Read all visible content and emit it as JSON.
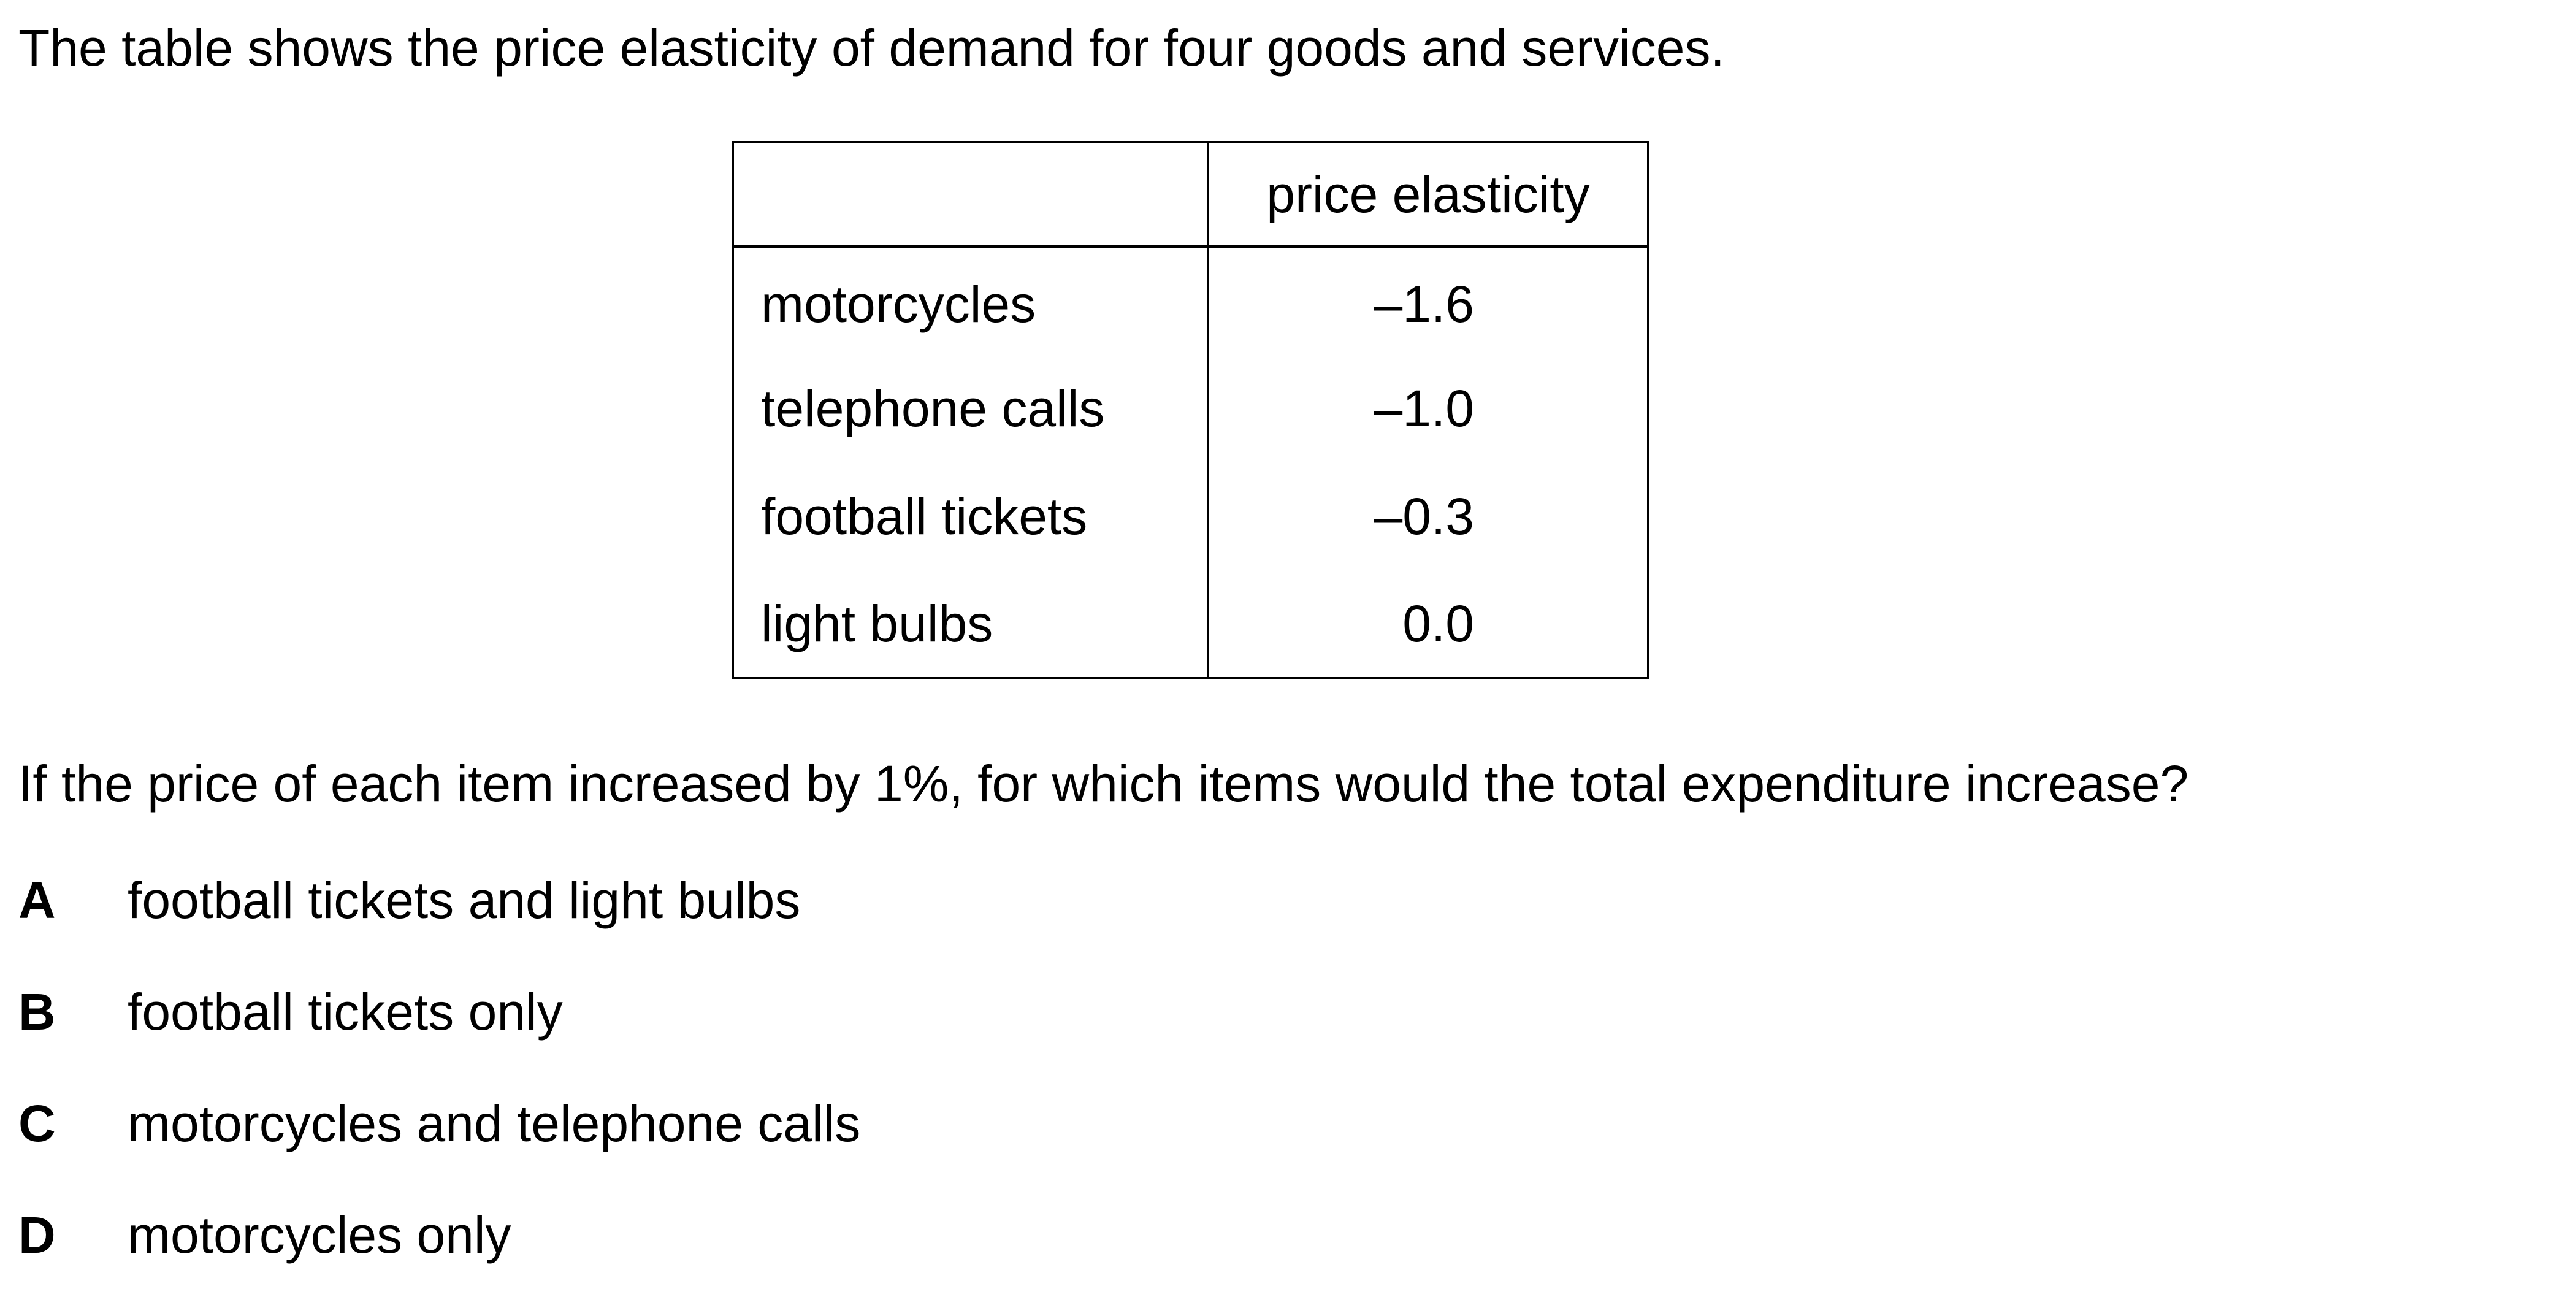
{
  "intro": "The table shows the price elasticity of demand for four goods and services.",
  "table": {
    "header": [
      "",
      "price elasticity"
    ],
    "rows": [
      {
        "item": "motorcycles",
        "value": "–1.6"
      },
      {
        "item": "telephone calls",
        "value": "–1.0"
      },
      {
        "item": "football tickets",
        "value": "–0.3"
      },
      {
        "item": "light bulbs",
        "value": "0.0"
      }
    ]
  },
  "question": "If the price of each item increased by 1%, for which items would the total expenditure increase?",
  "options": [
    {
      "letter": "A",
      "text": "football tickets and light bulbs"
    },
    {
      "letter": "B",
      "text": "football tickets only"
    },
    {
      "letter": "C",
      "text": "motorcycles and telephone calls"
    },
    {
      "letter": "D",
      "text": "motorcycles only"
    }
  ]
}
